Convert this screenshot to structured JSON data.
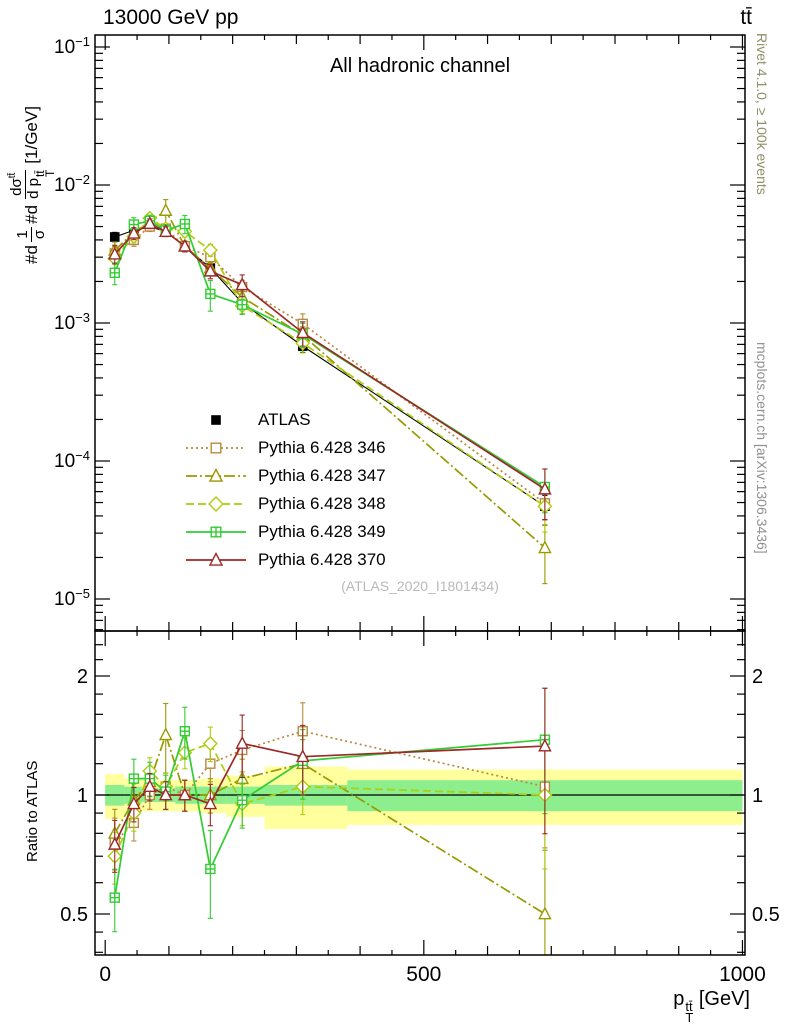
{
  "chart_data": {
    "type": "line",
    "panels": [
      "differential-spectrum",
      "ratio"
    ],
    "title_left": "13000 GeV pp",
    "title_right": "tt̄",
    "panel_label": "All hadronic channel",
    "watermark": "(ATLAS_2020_I1801434)",
    "right_label_top": "Rivet 4.1.0, ≥ 100k events",
    "right_label_bottom": "mcplots.cern.ch [arXiv:1306.3436]",
    "ratio_ylabel": "Ratio to ATLAS",
    "xlabel": {
      "base": "p",
      "sub": "T",
      "sup": "tt̄",
      "unit": " [GeV]"
    },
    "ylabel": {
      "prefix": "#d",
      "frac1": {
        "num": "1",
        "den": "σ"
      },
      "mid": "#d",
      "frac2": {
        "num": "dσ",
        "num_sup": "tt̄",
        "den": "d p",
        "den_sub": "T",
        "den_sup": "tt̄"
      },
      "unit": " [1/GeV]"
    },
    "x": {
      "min": -16,
      "max": 1004,
      "ticks": [
        0,
        500,
        1000
      ]
    },
    "y_top": {
      "scale": "log",
      "min": 5.9e-06,
      "max": 0.122,
      "decades": [
        -1,
        -2,
        -3,
        -4,
        -5
      ]
    },
    "y_ratio": {
      "scale": "log",
      "min": 0.394,
      "max": 2.6,
      "ticks": [
        0.5,
        1,
        2
      ],
      "minor": [
        0.4,
        0.45,
        0.6,
        0.7,
        0.8,
        0.9,
        1.2,
        1.4,
        1.6,
        1.8,
        2.2,
        2.4
      ]
    },
    "bins": [
      15,
      45,
      70,
      95,
      125,
      165,
      215,
      310,
      690
    ],
    "reference": {
      "label": "ATLAS",
      "color": "#000000",
      "marker": "square-filled",
      "values": [
        0.0042,
        0.0047,
        0.005,
        0.0046,
        0.0036,
        0.0025,
        0.0014,
        0.00068,
        4.7e-05
      ],
      "err": [
        0.08,
        0.05,
        0.05,
        0.05,
        0.06,
        0.07,
        0.08,
        0.1,
        0.2
      ]
    },
    "series": [
      {
        "label": "Pythia 6.428 346",
        "color": "#bb8840",
        "dash": "dotted",
        "marker": "square-open",
        "ratio": [
          0.76,
          0.85,
          1.0,
          1.05,
          1.0,
          1.2,
          1.3,
          1.45,
          1.05
        ],
        "err": [
          0.15,
          0.1,
          0.08,
          0.08,
          0.09,
          0.1,
          0.12,
          0.18,
          0.3
        ]
      },
      {
        "label": "Pythia 6.428 347",
        "color": "#999900",
        "dash": "dashdot",
        "marker": "triangle-open",
        "ratio": [
          0.8,
          0.97,
          1.08,
          1.42,
          1.0,
          1.0,
          1.1,
          1.2,
          0.5
        ],
        "err": [
          0.15,
          0.1,
          0.08,
          0.2,
          0.09,
          0.1,
          0.12,
          0.15,
          0.45
        ]
      },
      {
        "label": "Pythia 6.428 348",
        "color": "#afcc0e",
        "dash": "dashed",
        "marker": "diamond-open",
        "ratio": [
          0.7,
          0.9,
          1.15,
          1.05,
          1.28,
          1.35,
          0.95,
          1.05,
          1.0
        ],
        "err": [
          0.15,
          0.1,
          0.08,
          0.08,
          0.09,
          0.1,
          0.12,
          0.15,
          0.35
        ]
      },
      {
        "label": "Pythia 6.428 349",
        "color": "#33cc33",
        "dash": "solid",
        "marker": "square-plus",
        "ratio": [
          0.55,
          1.1,
          1.1,
          1.02,
          1.45,
          0.65,
          0.97,
          1.22,
          1.38
        ],
        "err": [
          0.18,
          0.12,
          0.1,
          0.1,
          0.15,
          0.25,
          0.15,
          0.2,
          0.35
        ]
      },
      {
        "label": "Pythia 6.428 370",
        "color": "#9c2828",
        "dash": "solid",
        "marker": "triangle-open",
        "ratio": [
          0.75,
          0.95,
          1.05,
          1.0,
          1.0,
          0.95,
          1.35,
          1.25,
          1.33
        ],
        "err": [
          0.15,
          0.1,
          0.08,
          0.08,
          0.09,
          0.12,
          0.18,
          0.2,
          0.4
        ]
      }
    ],
    "bands": {
      "edges": [
        0,
        30,
        57,
        85,
        110,
        148,
        190,
        250,
        380,
        1000
      ],
      "yellow": [
        0.13,
        0.1,
        0.09,
        0.09,
        0.09,
        0.1,
        0.12,
        0.18,
        0.16
      ],
      "green": [
        0.06,
        0.05,
        0.04,
        0.04,
        0.05,
        0.05,
        0.05,
        0.06,
        0.09
      ],
      "yellow_color": "#ffff9e",
      "green_color": "#8cee8c"
    }
  }
}
